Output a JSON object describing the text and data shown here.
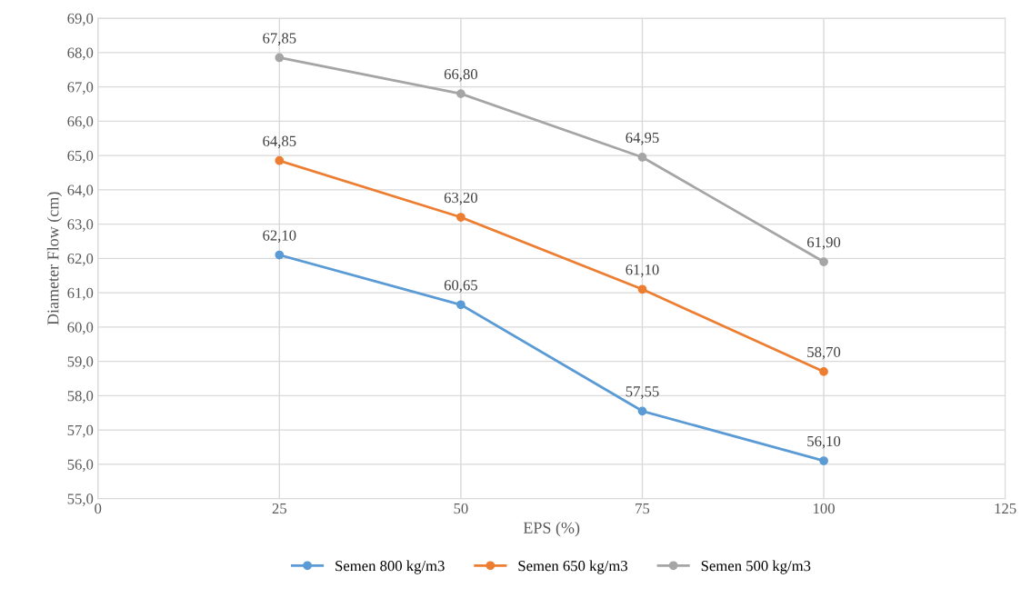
{
  "chart_data": {
    "type": "line",
    "xlabel": "EPS (%)",
    "ylabel": "Diameter Flow (cm)",
    "x": [
      25,
      50,
      75,
      100
    ],
    "series": [
      {
        "name": "Semen 800 kg/m3",
        "color": "#5b9bd5",
        "values": [
          62.1,
          60.65,
          57.55,
          56.1
        ],
        "value_labels": [
          "62,10",
          "60,65",
          "57,55",
          "56,10"
        ]
      },
      {
        "name": "Semen 650 kg/m3",
        "color": "#ed7d31",
        "values": [
          64.85,
          63.2,
          61.1,
          58.7
        ],
        "value_labels": [
          "64,85",
          "63,20",
          "61,10",
          "58,70"
        ]
      },
      {
        "name": "Semen 500 kg/m3",
        "color": "#a5a5a5",
        "values": [
          67.85,
          66.8,
          64.95,
          61.9
        ],
        "value_labels": [
          "67,85",
          "66,80",
          "64,95",
          "61,90"
        ]
      }
    ],
    "xlim": [
      0,
      125
    ],
    "xticks": [
      0,
      25,
      50,
      75,
      100,
      125
    ],
    "ylim": [
      55,
      69
    ],
    "yticks": [
      {
        "value": 55,
        "label": "55,0"
      },
      {
        "value": 56,
        "label": "56,0"
      },
      {
        "value": 57,
        "label": "57,0"
      },
      {
        "value": 58,
        "label": "58,0"
      },
      {
        "value": 59,
        "label": "59,0"
      },
      {
        "value": 60,
        "label": "60,0"
      },
      {
        "value": 61,
        "label": "61,0"
      },
      {
        "value": 62,
        "label": "62,0"
      },
      {
        "value": 63,
        "label": "63,0"
      },
      {
        "value": 64,
        "label": "64,0"
      },
      {
        "value": 65,
        "label": "65,0"
      },
      {
        "value": 66,
        "label": "66,0"
      },
      {
        "value": 67,
        "label": "67,0"
      },
      {
        "value": 68,
        "label": "68,0"
      },
      {
        "value": 69,
        "label": "69,0"
      }
    ],
    "grid": true,
    "legend": "bottom",
    "marker": "circle",
    "line_style": "solid"
  }
}
